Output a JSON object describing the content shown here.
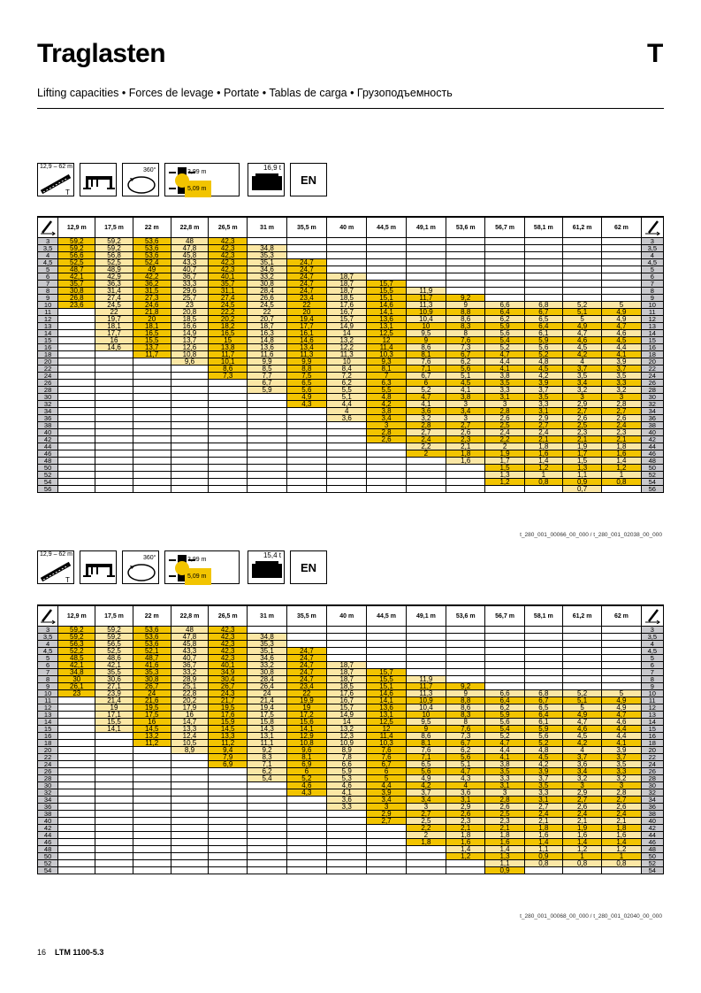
{
  "page": {
    "title": "Traglasten",
    "section_letter": "T",
    "subtitle": "Lifting capacities • Forces de levage • Portate • Tablas de carga • Грузоподъемность",
    "footer_page": "16",
    "footer_model": "LTM 1100-5.3"
  },
  "tables": [
    {
      "config": {
        "boom_range": "12,9 – 62 m",
        "slewing": "360°",
        "radius_a": "3,99 m",
        "radius_b": "5,09 m",
        "counterweight": "16,9 t",
        "lang": "EN"
      },
      "headers": [
        "12,9 m",
        "17,5 m",
        "22 m",
        "22,8 m",
        "26,5 m",
        "31 m",
        "35,5 m",
        "40 m",
        "44,5 m",
        "49,1 m",
        "53,6 m",
        "56,7 m",
        "58,1 m",
        "61,2 m",
        "62 m"
      ],
      "radii": [
        "3",
        "3,5",
        "4",
        "4,5",
        "5",
        "6",
        "7",
        "8",
        "9",
        "10",
        "11",
        "12",
        "13",
        "14",
        "15",
        "16",
        "18",
        "20",
        "22",
        "24",
        "26",
        "28",
        "30",
        "32",
        "34",
        "36",
        "38",
        "40",
        "42",
        "44",
        "46",
        "48",
        "50",
        "52",
        "54",
        "56"
      ],
      "cols": [
        [
          "59,2",
          "59,2",
          "56,6",
          "52,5",
          "48,7",
          "42,1",
          "35,7",
          "30,8",
          "26,8",
          "23,6"
        ],
        [
          "59,2",
          "59,2",
          "56,8",
          "52,5",
          "48,9",
          "42,9",
          "36,3",
          "31,4",
          "27,4",
          "24,5",
          "22",
          "19,7",
          "18,1",
          "17,7",
          "16",
          "14,6"
        ],
        [
          "53,6",
          "53,6",
          "53,6",
          "52,4",
          "49",
          "42,2",
          "36,2",
          "31,5",
          "27,3",
          "24,6",
          "21,8",
          "20",
          "18,1",
          "16,5",
          "15,5",
          "13,7",
          "11,7"
        ],
        [
          "48",
          "47,8",
          "45,8",
          "43,3",
          "40,7",
          "36,7",
          "33,3",
          "29,6",
          "25,7",
          "23",
          "20,8",
          "18,5",
          "16,6",
          "14,9",
          "13,7",
          "12,6",
          "10,8",
          "9,6"
        ],
        [
          "42,3",
          "42,3",
          "42,3",
          "42,3",
          "42,3",
          "40,1",
          "35,7",
          "31,1",
          "27,4",
          "24,5",
          "22,2",
          "20,2",
          "18,2",
          "16,5",
          "15",
          "13,8",
          "11,7",
          "10,1",
          "8,6",
          "7,3"
        ],
        [
          "",
          "34,8",
          "35,3",
          "35,1",
          "34,6",
          "33,2",
          "30,8",
          "28,4",
          "26,6",
          "24,5",
          "22",
          "20,7",
          "18,7",
          "16,3",
          "14,8",
          "13,6",
          "11,6",
          "9,9",
          "8,5",
          "7,7",
          "6,7",
          "5,9"
        ],
        [
          "",
          "",
          "",
          "24,7",
          "24,7",
          "24,7",
          "24,7",
          "24,7",
          "23,4",
          "22",
          "20",
          "19,4",
          "17,7",
          "16,1",
          "14,6",
          "13,4",
          "11,3",
          "9,9",
          "8,8",
          "7,5",
          "6,5",
          "5,6",
          "4,9",
          "4,3"
        ],
        [
          "",
          "",
          "",
          "",
          "",
          "18,7",
          "18,7",
          "18,7",
          "18,5",
          "17,6",
          "16,7",
          "15,7",
          "14,9",
          "14",
          "13,2",
          "12,2",
          "11,3",
          "10",
          "8,4",
          "7,2",
          "6,2",
          "5,5",
          "5,1",
          "4,4",
          "4",
          "3,6"
        ],
        [
          "",
          "",
          "",
          "",
          "",
          "",
          "15,7",
          "15,5",
          "15,1",
          "14,6",
          "14,1",
          "13,6",
          "13,1",
          "12,5",
          "12",
          "11,4",
          "10,3",
          "9,3",
          "8,1",
          "7",
          "6,3",
          "5,5",
          "4,8",
          "4,2",
          "3,8",
          "3,4",
          "3",
          "2,8",
          "2,6"
        ],
        [
          "",
          "",
          "",
          "",
          "",
          "",
          "",
          "11,9",
          "11,7",
          "11,3",
          "10,9",
          "10,4",
          "10",
          "9,5",
          "9",
          "8,6",
          "8,1",
          "7,6",
          "7,1",
          "6,7",
          "6",
          "5,2",
          "4,7",
          "4,1",
          "3,6",
          "3,2",
          "2,8",
          "2,7",
          "2,4",
          "2,2",
          "2"
        ],
        [
          "",
          "",
          "",
          "",
          "",
          "",
          "",
          "",
          "9,2",
          "9",
          "8,8",
          "8,6",
          "8,3",
          "8",
          "7,6",
          "7,3",
          "6,7",
          "6,2",
          "5,6",
          "5,1",
          "4,5",
          "4,1",
          "3,8",
          "3",
          "3,4",
          "3",
          "2,7",
          "2,6",
          "2,3",
          "2,1",
          "1,8",
          "1,6"
        ],
        [
          "",
          "",
          "",
          "",
          "",
          "",
          "",
          "",
          "",
          "6,6",
          "6,4",
          "6,2",
          "5,9",
          "5,6",
          "5,4",
          "5,2",
          "4,7",
          "4,4",
          "4,1",
          "3,8",
          "3,5",
          "3,3",
          "3,1",
          "3",
          "2,8",
          "2,6",
          "2,5",
          "2,4",
          "2,2",
          "2",
          "1,9",
          "1,7",
          "1,5",
          "1,3",
          "1,2"
        ],
        [
          "",
          "",
          "",
          "",
          "",
          "",
          "",
          "",
          "",
          "6,8",
          "6,7",
          "6,5",
          "6,4",
          "6,1",
          "5,9",
          "5,6",
          "5,2",
          "4,8",
          "4,5",
          "4,2",
          "3,9",
          "3,7",
          "3,5",
          "3,3",
          "3,1",
          "2,9",
          "2,7",
          "2,4",
          "2,1",
          "1,8",
          "1,6",
          "1,4",
          "1,2",
          "1",
          "0,8"
        ],
        [
          "",
          "",
          "",
          "",
          "",
          "",
          "",
          "",
          "",
          "5,2",
          "5,1",
          "5",
          "4,9",
          "4,7",
          "4,6",
          "4,5",
          "4,2",
          "4",
          "3,7",
          "3,5",
          "3,4",
          "3,2",
          "3",
          "2,9",
          "2,7",
          "2,6",
          "2,5",
          "2,3",
          "2,1",
          "1,9",
          "1,7",
          "1,5",
          "1,3",
          "1,1",
          "0,9",
          "0,7"
        ],
        [
          "",
          "",
          "",
          "",
          "",
          "",
          "",
          "",
          "",
          "5",
          "4,9",
          "4,9",
          "4,7",
          "4,6",
          "4,5",
          "4,4",
          "4,1",
          "3,9",
          "3,7",
          "3,5",
          "3,3",
          "3,2",
          "3",
          "2,8",
          "2,7",
          "2,6",
          "2,4",
          "2,3",
          "2,1",
          "1,8",
          "1,6",
          "1,4",
          "1,2",
          "1",
          "0,8"
        ]
      ],
      "reference": "t_280_001_00066_00_000 / t_280_001_02038_00_000"
    },
    {
      "config": {
        "boom_range": "12,9 – 62 m",
        "slewing": "360°",
        "radius_a": "3,99 m",
        "radius_b": "5,09 m",
        "counterweight": "15,4 t",
        "lang": "EN"
      },
      "headers": [
        "12,9 m",
        "17,5 m",
        "22 m",
        "22,8 m",
        "26,5 m",
        "31 m",
        "35,5 m",
        "40 m",
        "44,5 m",
        "49,1 m",
        "53,6 m",
        "56,7 m",
        "58,1 m",
        "61,2 m",
        "62 m"
      ],
      "radii": [
        "3",
        "3,5",
        "4",
        "4,5",
        "5",
        "6",
        "7",
        "8",
        "9",
        "10",
        "11",
        "12",
        "13",
        "14",
        "15",
        "16",
        "18",
        "20",
        "22",
        "24",
        "26",
        "28",
        "30",
        "32",
        "34",
        "36",
        "38",
        "40",
        "42",
        "44",
        "46",
        "48",
        "50",
        "52",
        "54"
      ],
      "cols": [
        [
          "59,2",
          "59,2",
          "56,3",
          "52,2",
          "48,5",
          "42,1",
          "34,8",
          "30",
          "26,1",
          "23"
        ],
        [
          "59,2",
          "59,2",
          "56,5",
          "52,5",
          "48,6",
          "42,1",
          "35,5",
          "30,6",
          "27,1",
          "23,9",
          "21,4",
          "19",
          "17,1",
          "15,5",
          "14,1"
        ],
        [
          "53,6",
          "53,6",
          "53,6",
          "52,1",
          "48,7",
          "41,6",
          "35,3",
          "30,8",
          "26,7",
          "24",
          "21,6",
          "19,5",
          "17,5",
          "16",
          "14,5",
          "13,2",
          "11,2"
        ],
        [
          "48",
          "47,8",
          "45,8",
          "43,3",
          "40,7",
          "36,7",
          "33,2",
          "28,9",
          "25,1",
          "22,8",
          "20,2",
          "17,9",
          "16",
          "14,7",
          "13,3",
          "12,4",
          "10,5",
          "8,9"
        ],
        [
          "42,3",
          "42,3",
          "42,3",
          "42,3",
          "42,3",
          "40,1",
          "34,9",
          "30,4",
          "26,7",
          "24,3",
          "21,7",
          "19,5",
          "17,6",
          "15,9",
          "14,5",
          "13,3",
          "11,2",
          "9,4",
          "7,9",
          "6,9"
        ],
        [
          "",
          "34,8",
          "35,3",
          "35,1",
          "34,6",
          "33,2",
          "30,8",
          "28,4",
          "26,4",
          "24",
          "21,4",
          "19,4",
          "17,5",
          "15,8",
          "14,3",
          "13,1",
          "11,1",
          "9,2",
          "8,3",
          "7,1",
          "6,2",
          "5,4"
        ],
        [
          "",
          "",
          "",
          "24,7",
          "24,7",
          "24,7",
          "24,7",
          "24,7",
          "23,4",
          "22",
          "19,9",
          "19",
          "17,2",
          "15,6",
          "14,1",
          "12,9",
          "10,8",
          "9,6",
          "8,1",
          "6,9",
          "6",
          "5,2",
          "4,6",
          "4,3"
        ],
        [
          "",
          "",
          "",
          "",
          "",
          "18,7",
          "18,7",
          "18,7",
          "18,5",
          "17,6",
          "16,7",
          "15,7",
          "14,9",
          "14",
          "13,2",
          "12,3",
          "10,9",
          "8,9",
          "7,8",
          "6,6",
          "5,9",
          "5,3",
          "4,6",
          "4,1",
          "3,6",
          "3,3"
        ],
        [
          "",
          "",
          "",
          "",
          "",
          "",
          "15,7",
          "15,5",
          "15,1",
          "14,6",
          "14,1",
          "13,6",
          "13,1",
          "12,5",
          "12",
          "11,4",
          "10,3",
          "7,6",
          "7,6",
          "6,7",
          "6",
          "5",
          "4,4",
          "3,9",
          "3,4",
          "3",
          "2,9",
          "2,7"
        ],
        [
          "",
          "",
          "",
          "",
          "",
          "",
          "",
          "11,9",
          "11,7",
          "11,3",
          "10,9",
          "10,4",
          "10",
          "9,5",
          "9",
          "8,6",
          "8,1",
          "7,6",
          "7,1",
          "6,5",
          "5,6",
          "4,9",
          "4,2",
          "3,7",
          "3,4",
          "3",
          "2,7",
          "2,5",
          "2,2",
          "2",
          "1,8"
        ],
        [
          "",
          "",
          "",
          "",
          "",
          "",
          "",
          "",
          "9,2",
          "9",
          "8,8",
          "8,6",
          "8,3",
          "8",
          "7,6",
          "7,3",
          "6,7",
          "6,2",
          "5,6",
          "5,1",
          "4,7",
          "4,3",
          "4",
          "3,6",
          "3,1",
          "2,9",
          "2,6",
          "2,3",
          "2,1",
          "1,8",
          "1,6",
          "1,4",
          "1,2"
        ],
        [
          "",
          "",
          "",
          "",
          "",
          "",
          "",
          "",
          "",
          "6,6",
          "6,4",
          "6,2",
          "5,9",
          "5,6",
          "5,4",
          "5,2",
          "4,7",
          "4,4",
          "4,1",
          "3,8",
          "3,5",
          "3,3",
          "3,1",
          "3",
          "2,8",
          "2,6",
          "2,5",
          "2,3",
          "2,1",
          "1,8",
          "1,6",
          "1,4",
          "1,3",
          "1,1",
          "0,9"
        ],
        [
          "",
          "",
          "",
          "",
          "",
          "",
          "",
          "",
          "",
          "6,8",
          "6,7",
          "6,5",
          "6,4",
          "6,1",
          "5,9",
          "5,6",
          "5,2",
          "4,8",
          "4,5",
          "4,2",
          "3,9",
          "3,7",
          "3,5",
          "3,3",
          "3,1",
          "2,7",
          "2,4",
          "2,1",
          "1,8",
          "1,6",
          "1,4",
          "1,1",
          "0,9",
          "0,8"
        ],
        [
          "",
          "",
          "",
          "",
          "",
          "",
          "",
          "",
          "",
          "5,2",
          "5,1",
          "5",
          "4,9",
          "4,7",
          "4,6",
          "4,5",
          "4,2",
          "4",
          "3,7",
          "3,6",
          "3,4",
          "3,2",
          "3",
          "2,9",
          "2,7",
          "2,6",
          "2,4",
          "2,1",
          "1,9",
          "1,6",
          "1,4",
          "1,2",
          "1",
          "0,8"
        ],
        [
          "",
          "",
          "",
          "",
          "",
          "",
          "",
          "",
          "",
          "5",
          "4,9",
          "4,9",
          "4,7",
          "4,6",
          "4,4",
          "4,4",
          "4,1",
          "3,9",
          "3,7",
          "3,5",
          "3,3",
          "3,2",
          "3",
          "2,8",
          "2,7",
          "2,6",
          "2,4",
          "2,1",
          "1,8",
          "1,6",
          "1,4",
          "1,2",
          "1",
          "0,8"
        ]
      ],
      "reference": "t_280_001_00068_00_000 / t_280_001_02040_00_000"
    }
  ]
}
